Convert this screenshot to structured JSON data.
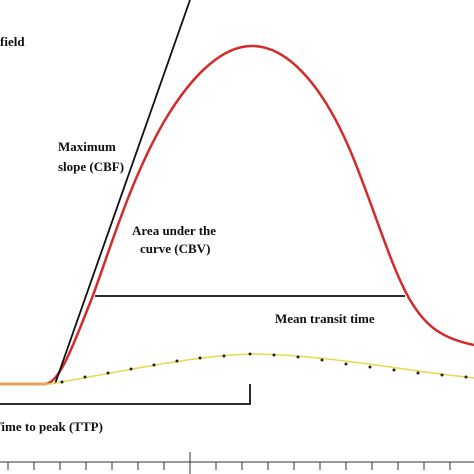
{
  "labels": {
    "field": "field",
    "max_slope_1": "Maximum",
    "max_slope_2": "slope (CBF)",
    "area_1": "Area under the",
    "area_2": "curve (CBV)",
    "mtt": "Mean transit time",
    "ttp": "Time to peak (TTP)"
  }
}
